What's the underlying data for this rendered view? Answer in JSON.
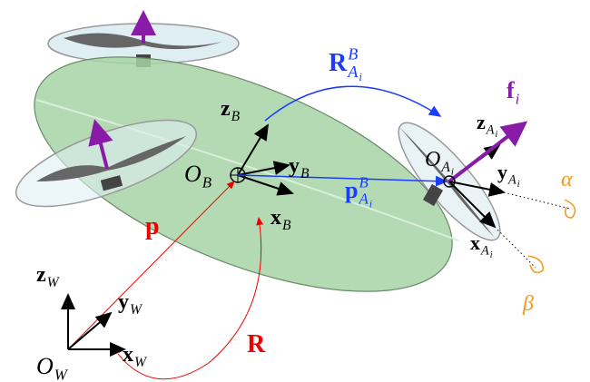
{
  "labels": [
    {
      "main": "R",
      "sub": "A",
      "subsub": "i",
      "sup": "B"
    },
    {
      "main": "f",
      "sub": "i"
    },
    {
      "main": "z",
      "sub": "B"
    },
    {
      "main": "z",
      "sub": "A",
      "subsub": "i"
    },
    {
      "main": "O",
      "sub": "B"
    },
    {
      "main": "y",
      "sub": "B"
    },
    {
      "main": "O",
      "sub": "A",
      "subsub": "i"
    },
    {
      "main": "y",
      "sub": "A",
      "subsub": "i"
    },
    {
      "main": "α"
    },
    {
      "main": "p",
      "sub": "A",
      "subsub": "i",
      "sup": "B"
    },
    {
      "main": "x",
      "sub": "B"
    },
    {
      "main": "x",
      "sub": "A",
      "subsub": "i"
    },
    {
      "main": "p"
    },
    {
      "main": "z",
      "sub": "W"
    },
    {
      "main": "y",
      "sub": "W"
    },
    {
      "main": "β"
    },
    {
      "main": "R"
    },
    {
      "main": "x",
      "sub": "W"
    },
    {
      "main": "O",
      "sub": "W"
    }
  ]
}
